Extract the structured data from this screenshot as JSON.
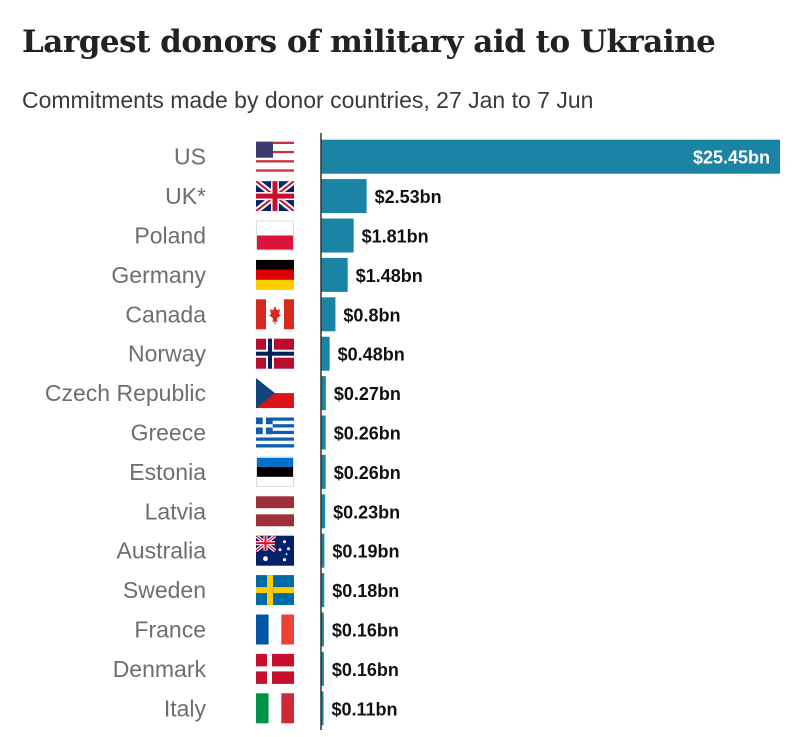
{
  "chart_data": {
    "type": "bar",
    "orientation": "horizontal",
    "title": "Largest donors of military aid to Ukraine",
    "subtitle": "Commitments made by donor countries, 27 Jan to 7 Jun",
    "categories": [
      "US",
      "UK*",
      "Poland",
      "Germany",
      "Canada",
      "Norway",
      "Czech Republic",
      "Greece",
      "Estonia",
      "Latvia",
      "Australia",
      "Sweden",
      "France",
      "Denmark",
      "Italy"
    ],
    "values": [
      25.45,
      2.53,
      1.81,
      1.48,
      0.8,
      0.48,
      0.27,
      0.26,
      0.26,
      0.23,
      0.19,
      0.18,
      0.16,
      0.16,
      0.11
    ],
    "value_labels": [
      "$25.45bn",
      "$2.53bn",
      "$1.81bn",
      "$1.48bn",
      "$0.8bn",
      "$0.48bn",
      "$0.27bn",
      "$0.26bn",
      "$0.26bn",
      "$0.23bn",
      "$0.19bn",
      "$0.18bn",
      "$0.16bn",
      "$0.16bn",
      "$0.11bn"
    ],
    "flags": [
      "us-flag-icon",
      "uk-flag-icon",
      "poland-flag-icon",
      "germany-flag-icon",
      "canada-flag-icon",
      "norway-flag-icon",
      "czech-republic-flag-icon",
      "greece-flag-icon",
      "estonia-flag-icon",
      "latvia-flag-icon",
      "australia-flag-icon",
      "sweden-flag-icon",
      "france-flag-icon",
      "denmark-flag-icon",
      "italy-flag-icon"
    ],
    "xlim": [
      0,
      25.45
    ],
    "bar_color": "#1b83a3",
    "grid": false,
    "legend": "none"
  }
}
